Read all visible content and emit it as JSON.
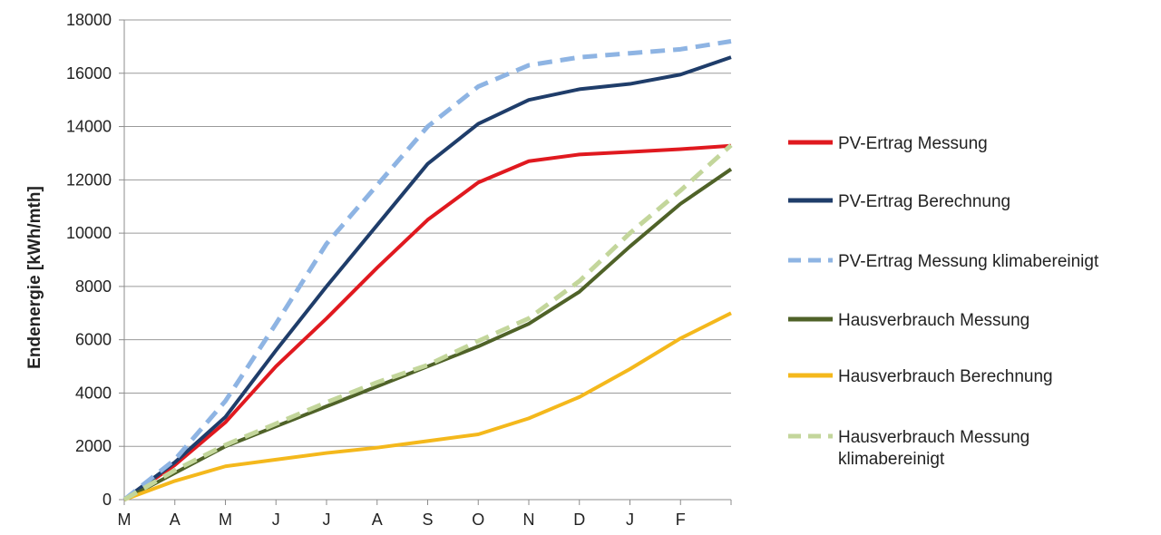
{
  "chart_data": {
    "type": "line",
    "ylabel": "Endenergie  [kWh/mth]",
    "xlabel": "",
    "categories": [
      "M",
      "A",
      "M",
      "J",
      "J",
      "A",
      "S",
      "O",
      "N",
      "D",
      "J",
      "F",
      ""
    ],
    "ylim": [
      0,
      18000
    ],
    "yticks": [
      0,
      2000,
      4000,
      6000,
      8000,
      10000,
      12000,
      14000,
      16000,
      18000
    ],
    "grid": true,
    "legend": "right",
    "series": [
      {
        "name": "PV-Ertrag Messung",
        "color": "#e0191f",
        "style": "solid",
        "values": [
          0,
          1300,
          2900,
          5000,
          6800,
          8700,
          10500,
          11900,
          12700,
          12950,
          13050,
          13150,
          13280
        ]
      },
      {
        "name": "PV-Ertrag Berechnung",
        "color": "#1f3d6a",
        "style": "solid",
        "values": [
          0,
          1400,
          3100,
          5600,
          8000,
          10300,
          12600,
          14100,
          15000,
          15400,
          15600,
          15950,
          16600
        ]
      },
      {
        "name": "PV-Ertrag Messung klimabereinigt",
        "color": "#8eb4e3",
        "style": "dashed",
        "values": [
          0,
          1500,
          3700,
          6600,
          9600,
          11800,
          14000,
          15500,
          16300,
          16600,
          16750,
          16900,
          17200
        ]
      },
      {
        "name": "Hausverbrauch Messung",
        "color": "#4f6228",
        "style": "solid",
        "values": [
          0,
          1000,
          2000,
          2750,
          3500,
          4250,
          5000,
          5750,
          6600,
          7800,
          9500,
          11100,
          12400
        ]
      },
      {
        "name": "Hausverbrauch Berechnung",
        "color": "#f4b81c",
        "style": "solid",
        "values": [
          0,
          700,
          1250,
          1500,
          1750,
          1950,
          2200,
          2450,
          3050,
          3850,
          4900,
          6050,
          7000
        ]
      },
      {
        "name": "Hausverbrauch Messung klimabereinigt",
        "color": "#c3d69b",
        "style": "dashed",
        "values": [
          0,
          1100,
          2050,
          2850,
          3650,
          4400,
          5050,
          5950,
          6800,
          8200,
          10000,
          11600,
          13300
        ]
      }
    ]
  }
}
